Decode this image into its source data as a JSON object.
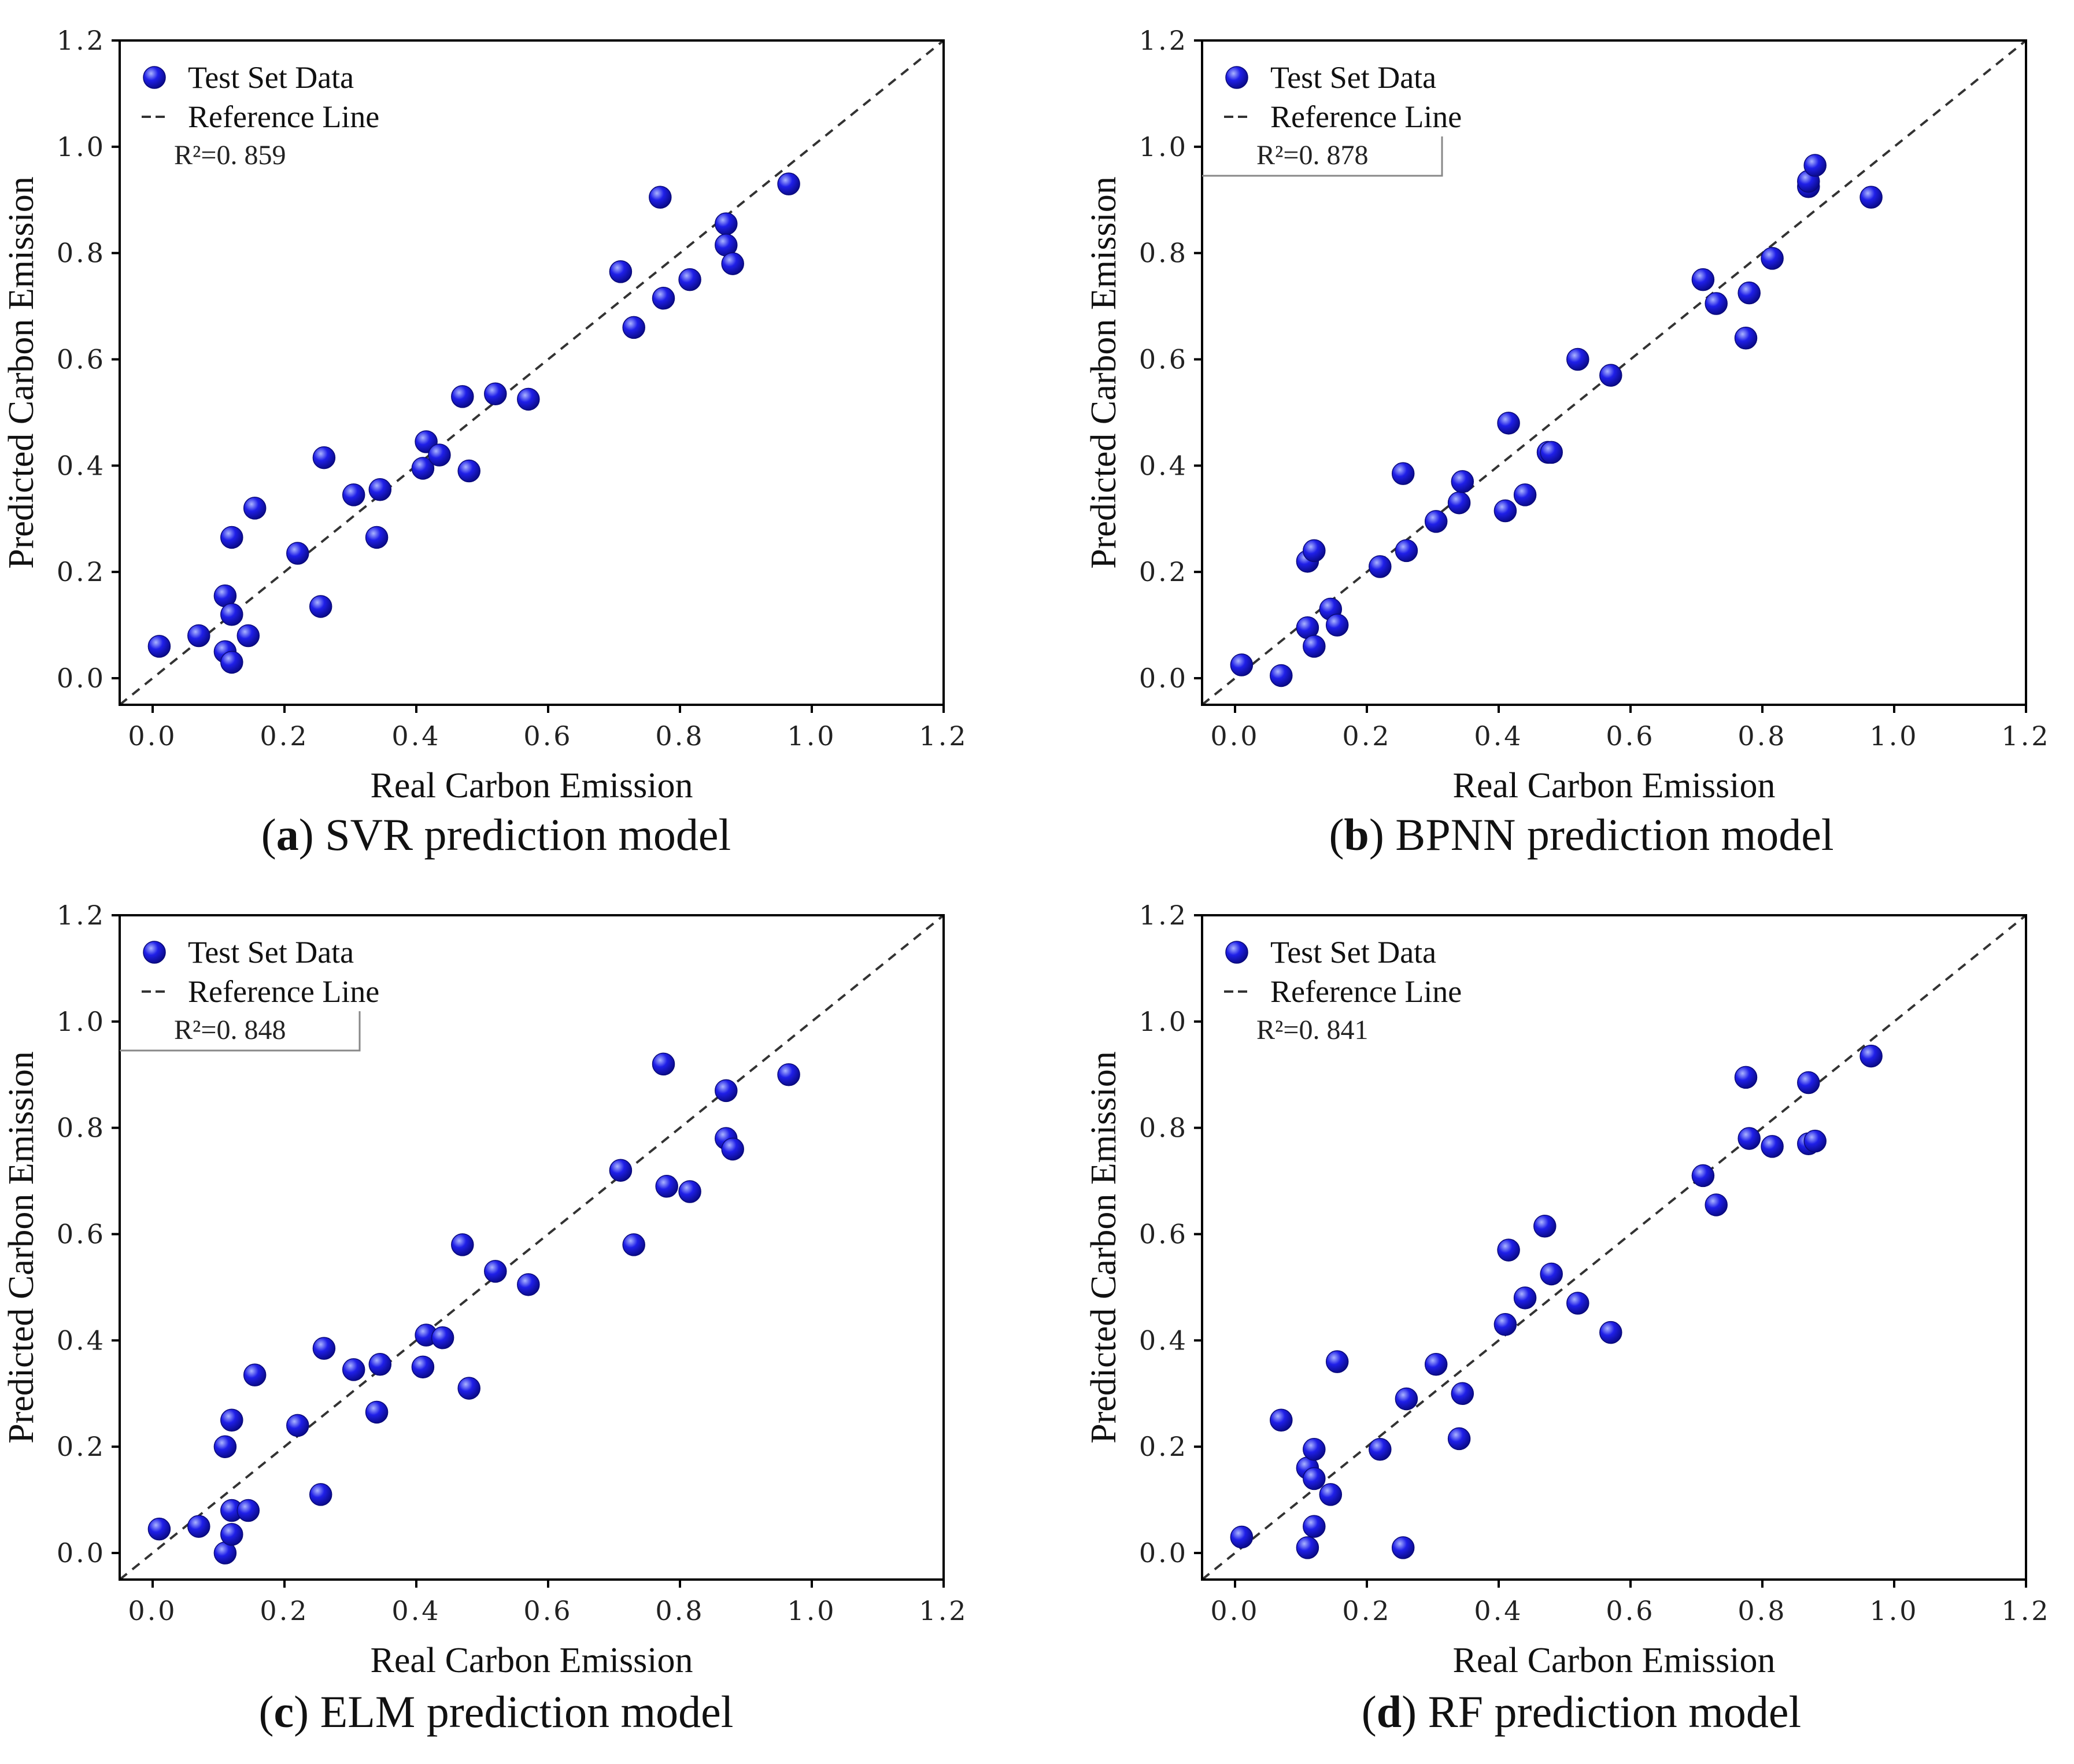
{
  "colors": {
    "point": "#1f1fe8",
    "point_highlight": "#aab4ff",
    "axis": "#000000",
    "reference_line": "#333333"
  },
  "legend_icons": [
    "sphere-marker-icon",
    "dashed-line-icon"
  ],
  "chart_data": [
    {
      "id": "a",
      "type": "scatter",
      "caption_letter": "a",
      "caption": "SVR prediction model",
      "xlabel": "Real Carbon Emission",
      "ylabel": "Predicted Carbon Emission",
      "xlim": [
        -0.05,
        1.2
      ],
      "ylim": [
        -0.05,
        1.2
      ],
      "xticks": [
        "0.0",
        "0.2",
        "0.4",
        "0.6",
        "0.8",
        "1.0",
        "1.2"
      ],
      "yticks": [
        "0.0",
        "0.2",
        "0.4",
        "0.6",
        "0.8",
        "1.0",
        "1.2"
      ],
      "legend": {
        "points": "Test Set Data",
        "line": "Reference Line",
        "r2": "R²=0. 859",
        "r2_box": false
      },
      "reference_line": [
        [
          -0.05,
          -0.05
        ],
        [
          1.2,
          1.2
        ]
      ],
      "series": [
        {
          "name": "Test Set Data",
          "points": [
            [
              0.01,
              0.06
            ],
            [
              0.07,
              0.08
            ],
            [
              0.11,
              0.05
            ],
            [
              0.12,
              0.03
            ],
            [
              0.145,
              0.08
            ],
            [
              0.11,
              0.155
            ],
            [
              0.12,
              0.12
            ],
            [
              0.12,
              0.265
            ],
            [
              0.155,
              0.32
            ],
            [
              0.22,
              0.235
            ],
            [
              0.255,
              0.135
            ],
            [
              0.26,
              0.415
            ],
            [
              0.305,
              0.345
            ],
            [
              0.34,
              0.265
            ],
            [
              0.345,
              0.355
            ],
            [
              0.41,
              0.395
            ],
            [
              0.415,
              0.445
            ],
            [
              0.435,
              0.42
            ],
            [
              0.48,
              0.39
            ],
            [
              0.47,
              0.53
            ],
            [
              0.52,
              0.535
            ],
            [
              0.57,
              0.525
            ],
            [
              0.71,
              0.765
            ],
            [
              0.73,
              0.66
            ],
            [
              0.77,
              0.905
            ],
            [
              0.775,
              0.715
            ],
            [
              0.815,
              0.75
            ],
            [
              0.87,
              0.855
            ],
            [
              0.87,
              0.815
            ],
            [
              0.88,
              0.78
            ],
            [
              0.965,
              0.93
            ]
          ]
        }
      ]
    },
    {
      "id": "b",
      "type": "scatter",
      "caption_letter": "b",
      "caption": "BPNN prediction model",
      "xlabel": "Real Carbon Emission",
      "ylabel": "Predicted Carbon Emission",
      "xlim": [
        -0.05,
        1.2
      ],
      "ylim": [
        -0.05,
        1.2
      ],
      "xticks": [
        "0.0",
        "0.2",
        "0.4",
        "0.6",
        "0.8",
        "1.0",
        "1.2"
      ],
      "yticks": [
        "0.0",
        "0.2",
        "0.4",
        "0.6",
        "0.8",
        "1.0",
        "1.2"
      ],
      "legend": {
        "points": "Test Set Data",
        "line": "Reference Line",
        "r2": "R²=0. 878",
        "r2_box": true
      },
      "reference_line": [
        [
          -0.05,
          -0.05
        ],
        [
          1.2,
          1.2
        ]
      ],
      "series": [
        {
          "name": "Test Set Data",
          "points": [
            [
              0.01,
              0.025
            ],
            [
              0.07,
              0.005
            ],
            [
              0.11,
              0.095
            ],
            [
              0.12,
              0.06
            ],
            [
              0.145,
              0.13
            ],
            [
              0.155,
              0.1
            ],
            [
              0.11,
              0.22
            ],
            [
              0.12,
              0.24
            ],
            [
              0.22,
              0.21
            ],
            [
              0.26,
              0.24
            ],
            [
              0.255,
              0.385
            ],
            [
              0.305,
              0.295
            ],
            [
              0.34,
              0.33
            ],
            [
              0.345,
              0.37
            ],
            [
              0.41,
              0.315
            ],
            [
              0.415,
              0.48
            ],
            [
              0.44,
              0.345
            ],
            [
              0.475,
              0.425
            ],
            [
              0.48,
              0.425
            ],
            [
              0.52,
              0.6
            ],
            [
              0.57,
              0.57
            ],
            [
              0.71,
              0.75
            ],
            [
              0.73,
              0.705
            ],
            [
              0.775,
              0.64
            ],
            [
              0.78,
              0.725
            ],
            [
              0.815,
              0.79
            ],
            [
              0.87,
              0.925
            ],
            [
              0.87,
              0.935
            ],
            [
              0.88,
              0.965
            ],
            [
              0.965,
              0.905
            ]
          ]
        }
      ]
    },
    {
      "id": "c",
      "type": "scatter",
      "caption_letter": "c",
      "caption": "ELM prediction model",
      "xlabel": "Real Carbon Emission",
      "ylabel": "Predicted Carbon Emission",
      "xlim": [
        -0.05,
        1.2
      ],
      "ylim": [
        -0.05,
        1.2
      ],
      "xticks": [
        "0.0",
        "0.2",
        "0.4",
        "0.6",
        "0.8",
        "1.0",
        "1.2"
      ],
      "yticks": [
        "0.0",
        "0.2",
        "0.4",
        "0.6",
        "0.8",
        "1.0",
        "1.2"
      ],
      "legend": {
        "points": "Test Set Data",
        "line": "Reference Line",
        "r2": "R²=0. 848",
        "r2_box": true
      },
      "reference_line": [
        [
          -0.05,
          -0.05
        ],
        [
          1.2,
          1.2
        ]
      ],
      "series": [
        {
          "name": "Test Set Data",
          "points": [
            [
              0.01,
              0.045
            ],
            [
              0.07,
              0.05
            ],
            [
              0.11,
              0.0
            ],
            [
              0.12,
              0.035
            ],
            [
              0.12,
              0.08
            ],
            [
              0.145,
              0.08
            ],
            [
              0.11,
              0.2
            ],
            [
              0.12,
              0.25
            ],
            [
              0.155,
              0.335
            ],
            [
              0.22,
              0.24
            ],
            [
              0.255,
              0.11
            ],
            [
              0.26,
              0.385
            ],
            [
              0.305,
              0.345
            ],
            [
              0.34,
              0.265
            ],
            [
              0.345,
              0.355
            ],
            [
              0.41,
              0.35
            ],
            [
              0.415,
              0.41
            ],
            [
              0.44,
              0.405
            ],
            [
              0.48,
              0.31
            ],
            [
              0.47,
              0.58
            ],
            [
              0.52,
              0.53
            ],
            [
              0.57,
              0.505
            ],
            [
              0.71,
              0.72
            ],
            [
              0.73,
              0.58
            ],
            [
              0.775,
              0.92
            ],
            [
              0.78,
              0.69
            ],
            [
              0.815,
              0.68
            ],
            [
              0.87,
              0.87
            ],
            [
              0.87,
              0.78
            ],
            [
              0.88,
              0.76
            ],
            [
              0.965,
              0.9
            ]
          ]
        }
      ]
    },
    {
      "id": "d",
      "type": "scatter",
      "caption_letter": "d",
      "caption": "RF prediction model",
      "xlabel": "Real Carbon Emission",
      "ylabel": "Predicted Carbon Emission",
      "xlim": [
        -0.05,
        1.2
      ],
      "ylim": [
        -0.05,
        1.2
      ],
      "xticks": [
        "0.0",
        "0.2",
        "0.4",
        "0.6",
        "0.8",
        "1.0",
        "1.2"
      ],
      "yticks": [
        "0.0",
        "0.2",
        "0.4",
        "0.6",
        "0.8",
        "1.0",
        "1.2"
      ],
      "legend": {
        "points": "Test Set Data",
        "line": "Reference Line",
        "r2": "R²=0. 841",
        "r2_box": false
      },
      "reference_line": [
        [
          -0.05,
          -0.05
        ],
        [
          1.2,
          1.2
        ]
      ],
      "series": [
        {
          "name": "Test Set Data",
          "points": [
            [
              0.01,
              0.03
            ],
            [
              0.07,
              0.25
            ],
            [
              0.11,
              0.01
            ],
            [
              0.12,
              0.05
            ],
            [
              0.145,
              0.11
            ],
            [
              0.11,
              0.16
            ],
            [
              0.12,
              0.14
            ],
            [
              0.12,
              0.195
            ],
            [
              0.155,
              0.36
            ],
            [
              0.22,
              0.195
            ],
            [
              0.255,
              0.01
            ],
            [
              0.26,
              0.29
            ],
            [
              0.305,
              0.355
            ],
            [
              0.34,
              0.215
            ],
            [
              0.345,
              0.3
            ],
            [
              0.41,
              0.43
            ],
            [
              0.415,
              0.57
            ],
            [
              0.44,
              0.48
            ],
            [
              0.47,
              0.615
            ],
            [
              0.48,
              0.525
            ],
            [
              0.52,
              0.47
            ],
            [
              0.57,
              0.415
            ],
            [
              0.71,
              0.71
            ],
            [
              0.73,
              0.655
            ],
            [
              0.775,
              0.895
            ],
            [
              0.78,
              0.78
            ],
            [
              0.815,
              0.765
            ],
            [
              0.87,
              0.885
            ],
            [
              0.87,
              0.77
            ],
            [
              0.88,
              0.775
            ],
            [
              0.965,
              0.935
            ]
          ]
        }
      ]
    }
  ]
}
